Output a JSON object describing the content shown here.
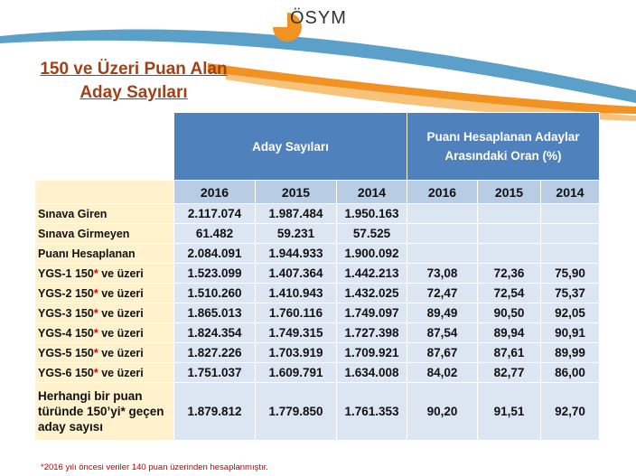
{
  "logo": {
    "text": "ÖSYM"
  },
  "title": {
    "line1": "150 ve Üzeri Puan Alan",
    "line2": "Aday Sayıları"
  },
  "table": {
    "group_headers": {
      "left": "Aday Sayıları",
      "right": "Puanı Hesaplanan Adaylar Arasındaki Oran (%)"
    },
    "years": [
      "2016",
      "2015",
      "2014",
      "2016",
      "2015",
      "2014"
    ],
    "rows": [
      {
        "label": "Sınava Giren",
        "values": [
          "2.117.074",
          "1.987.484",
          "1.950.163",
          "",
          "",
          ""
        ]
      },
      {
        "label": "Sınava Girmeyen",
        "values": [
          "61.482",
          "59.231",
          "57.525",
          "",
          "",
          ""
        ]
      },
      {
        "label": "Puanı Hesaplanan",
        "values": [
          "2.084.091",
          "1.944.933",
          "1.900.092",
          "",
          "",
          ""
        ]
      },
      {
        "label_pre": "YGS-1  150",
        "label_post": " ve üzeri",
        "values": [
          "1.523.099",
          "1.407.364",
          "1.442.213",
          "73,08",
          "72,36",
          "75,90"
        ]
      },
      {
        "label_pre": "YGS-2  150",
        "label_post": " ve üzeri",
        "values": [
          "1.510.260",
          "1.410.943",
          "1.432.025",
          "72,47",
          "72,54",
          "75,37"
        ]
      },
      {
        "label_pre": "YGS-3  150",
        "label_post": " ve üzeri",
        "values": [
          "1.865.013",
          "1.760.116",
          "1.749.097",
          "89,49",
          "90,50",
          "92,05"
        ]
      },
      {
        "label_pre": "YGS-4  150",
        "label_post": " ve üzeri",
        "values": [
          "1.824.354",
          "1.749.315",
          "1.727.398",
          "87,54",
          "89,94",
          "90,91"
        ]
      },
      {
        "label_pre": "YGS-5  150",
        "label_post": " ve üzeri",
        "values": [
          "1.827.226",
          "1.703.919",
          "1.709.921",
          "87,67",
          "87,61",
          "89,99"
        ]
      },
      {
        "label_pre": "YGS-6  150",
        "label_post": " ve üzeri",
        "values": [
          "1.751.037",
          "1.609.791",
          "1.634.008",
          "84,02",
          "82,77",
          "86,00"
        ]
      },
      {
        "label": "Herhangi bir puan türünde 150’yi* geçen aday sayısı",
        "values": [
          "1.879.812",
          "1.779.850",
          "1.761.353",
          "90,20",
          "91,51",
          "92,70"
        ]
      }
    ],
    "star": "*"
  },
  "footnote": "*2016 yılı öncesi veriler 140 puan üzerinden hesaplanmıştır.",
  "colors": {
    "header_blue": "#4f81bd",
    "year_row": "#b8cce4",
    "label_bg": "#fff2cc",
    "cell_bg": "#dce6f2",
    "title": "#a0411a",
    "swoosh": "#f29222"
  }
}
